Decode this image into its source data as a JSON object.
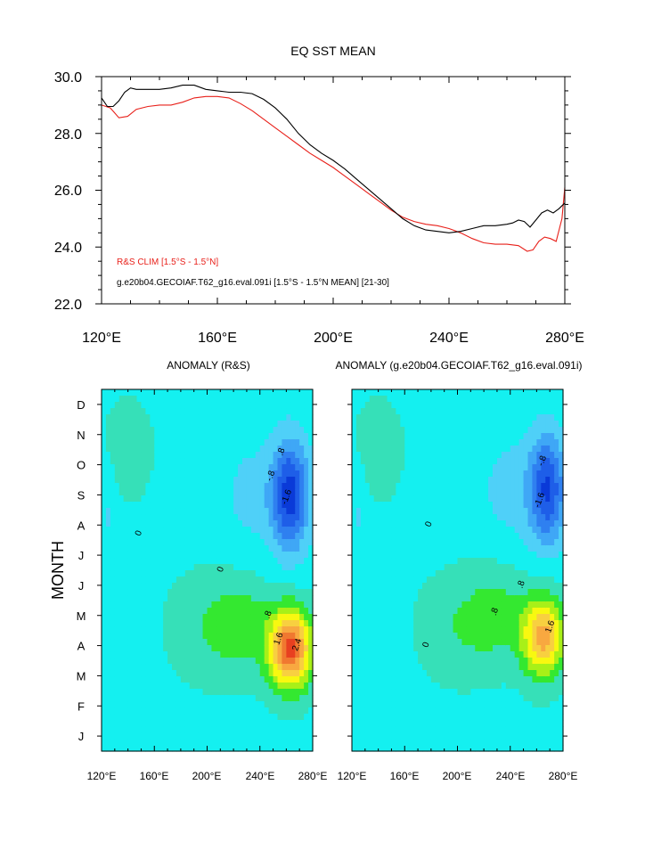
{
  "chart_data": [
    {
      "type": "line",
      "title": "EQ SST MEAN",
      "xlabel": "",
      "ylabel": "",
      "xlim": [
        120,
        280
      ],
      "ylim": [
        22,
        30
      ],
      "x_ticks": [
        120,
        160,
        200,
        240,
        280
      ],
      "x_tick_labels": [
        "120°E",
        "160°E",
        "200°E",
        "240°E",
        "280°E"
      ],
      "y_ticks": [
        22,
        24,
        26,
        28,
        30
      ],
      "y_tick_labels": [
        "22.0",
        "24.0",
        "26.0",
        "28.0",
        "30.0"
      ],
      "legend_placement": "bottom-left",
      "series": [
        {
          "name": "R&S CLIM [1.5°S - 1.5°N]",
          "color": "#e8201a",
          "x": [
            120,
            123,
            126,
            129,
            132,
            136,
            140,
            144,
            148,
            152,
            156,
            160,
            164,
            168,
            172,
            176,
            180,
            184,
            188,
            192,
            196,
            200,
            204,
            208,
            212,
            216,
            220,
            224,
            228,
            232,
            236,
            240,
            244,
            248,
            252,
            256,
            260,
            264,
            267,
            269,
            271,
            273,
            275,
            277,
            279,
            280
          ],
          "y": [
            29.0,
            28.9,
            28.55,
            28.6,
            28.85,
            28.95,
            29.0,
            29.0,
            29.1,
            29.25,
            29.3,
            29.3,
            29.25,
            29.05,
            28.8,
            28.5,
            28.2,
            27.9,
            27.6,
            27.3,
            27.05,
            26.8,
            26.5,
            26.2,
            25.9,
            25.6,
            25.3,
            25.05,
            24.9,
            24.8,
            24.75,
            24.65,
            24.5,
            24.3,
            24.15,
            24.1,
            24.1,
            24.05,
            23.85,
            23.9,
            24.2,
            24.35,
            24.3,
            24.2,
            25.0,
            26.1
          ]
        },
        {
          "name": "g.e20b04.GECOIAF.T62_g16.eval.091i [1.5°S - 1.5°N MEAN] [21-30]",
          "color": "#000000",
          "x": [
            120,
            122,
            124,
            126,
            128,
            130,
            132,
            136,
            140,
            144,
            148,
            152,
            156,
            160,
            164,
            168,
            172,
            176,
            180,
            184,
            188,
            192,
            196,
            200,
            204,
            208,
            212,
            216,
            220,
            224,
            228,
            232,
            236,
            240,
            244,
            248,
            252,
            256,
            260,
            262,
            264,
            266,
            268,
            270,
            272,
            274,
            276,
            278,
            280
          ],
          "y": [
            29.25,
            28.95,
            28.95,
            29.15,
            29.45,
            29.6,
            29.55,
            29.55,
            29.55,
            29.6,
            29.7,
            29.7,
            29.55,
            29.5,
            29.45,
            29.45,
            29.4,
            29.2,
            28.9,
            28.5,
            28.0,
            27.6,
            27.3,
            27.05,
            26.75,
            26.4,
            26.05,
            25.7,
            25.35,
            25.0,
            24.75,
            24.6,
            24.55,
            24.5,
            24.55,
            24.65,
            24.75,
            24.75,
            24.8,
            24.85,
            24.95,
            24.9,
            24.7,
            24.95,
            25.2,
            25.3,
            25.2,
            25.35,
            25.55
          ]
        }
      ]
    },
    {
      "type": "heatmap",
      "title": "ANOMALY (R&S)",
      "xlabel": "",
      "ylabel": "MONTH",
      "xlim": [
        120,
        280
      ],
      "x_tick_labels": [
        "120°E",
        "160°E",
        "200°E",
        "240°E",
        "280°E"
      ],
      "y_categories": [
        "J",
        "F",
        "M",
        "A",
        "M",
        "J",
        "J",
        "A",
        "S",
        "O",
        "N",
        "D"
      ],
      "contour_labels": [
        "0",
        ".8",
        "-.8",
        "1.6",
        "-1.6",
        "2.4"
      ],
      "features": [
        {
          "kind": "warm",
          "lon": 263,
          "month": 3.9,
          "peak": 2.6
        },
        {
          "kind": "cold",
          "lon": 263,
          "month": 9.0,
          "peak": -1.9
        }
      ]
    },
    {
      "type": "heatmap",
      "title": "ANOMALY (g.e20b04.GECOIAF.T62_g16.eval.091i)",
      "xlabel": "",
      "ylabel": "",
      "xlim": [
        120,
        280
      ],
      "x_tick_labels": [
        "120°E",
        "160°E",
        "200°E",
        "240°E",
        "280°E"
      ],
      "y_categories": [
        "J",
        "F",
        "M",
        "A",
        "M",
        "J",
        "J",
        "A",
        "S",
        "O",
        "N",
        "D"
      ],
      "contour_labels": [
        "0",
        ".8",
        "-.8",
        "1.6",
        "-1.6"
      ],
      "features": [
        {
          "kind": "warm",
          "lon": 265,
          "month": 4.3,
          "peak": 1.9
        },
        {
          "kind": "cold",
          "lon": 268,
          "month": 9.2,
          "peak": -1.7
        }
      ]
    }
  ],
  "palette": {
    "levels": [
      -2.4,
      -2.0,
      -1.6,
      -1.2,
      -0.8,
      -0.4,
      0.0,
      0.4,
      0.8,
      1.2,
      1.6,
      2.0,
      2.4
    ],
    "colors": [
      "#0a3ad8",
      "#1e5ee8",
      "#2f80f0",
      "#3fa7f6",
      "#4fd0f8",
      "#14f0f0",
      "#36e0b8",
      "#34e830",
      "#a8f018",
      "#f8f810",
      "#f8d040",
      "#f8a840",
      "#f07830",
      "#e84020"
    ]
  }
}
